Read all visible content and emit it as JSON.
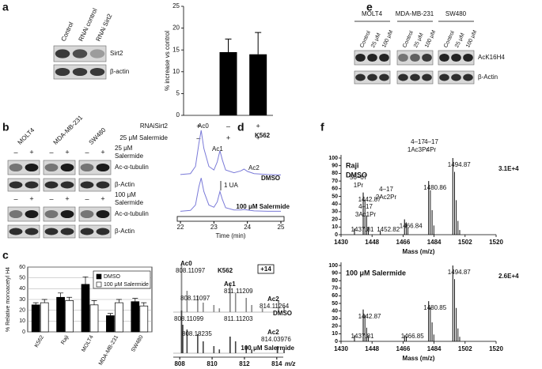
{
  "panels": {
    "a": {
      "letter": "a",
      "blot": {
        "lanes": [
          "Control",
          "RNAi control",
          "RNAi Sirt2"
        ],
        "bands": [
          "Sirt2",
          "β-actin"
        ]
      },
      "conditions": [
        {
          "label": "RNAiSirt2",
          "signs": [
            "+",
            "–",
            "+"
          ]
        },
        {
          "label": "25 μM Salermide",
          "signs": [
            "–",
            "+",
            "+"
          ]
        }
      ]
    },
    "b": {
      "letter": "b",
      "cell_lines": [
        "MOLT4",
        "MDA-MB-231",
        "SW480"
      ],
      "blocks": [
        {
          "signs": [
            "–",
            "+",
            "–",
            "+",
            "–",
            "+"
          ],
          "treatment": [
            "25 μM",
            "Salermide"
          ],
          "bands": [
            "Ac-α-tubulin",
            "β-Actin"
          ]
        },
        {
          "signs": [
            "–",
            "+",
            "–",
            "+",
            "–",
            "+"
          ],
          "treatment": [
            "100 μM",
            "Salermide"
          ],
          "bands": [
            "Ac-α-tubulin",
            "β-Actin"
          ]
        }
      ]
    },
    "c": {
      "letter": "c"
    },
    "d": {
      "letter": "d"
    },
    "e": {
      "letter": "e",
      "cell_lines": [
        "MOLT4",
        "MDA-MB-231",
        "SW480"
      ],
      "lanes": [
        "Control",
        "25 μM",
        "100 μM"
      ],
      "bands": [
        "AcK16H4",
        "β-Actin"
      ]
    },
    "f": {
      "letter": "f"
    }
  },
  "chart_data": [
    {
      "type": "bar",
      "y_label": "% increase vs control",
      "values": [
        0,
        14.5,
        14
      ],
      "errors": [
        null,
        3,
        5
      ],
      "color": "#000000",
      "ylim": [
        0,
        25
      ],
      "yticks": [
        0,
        5,
        10,
        15,
        20,
        25
      ]
    },
    {
      "type": "grouped_bar",
      "y_label": "% Relative monoacetyl H4",
      "categories": [
        "K562",
        "Raji",
        "MOLT4",
        "MDA-MB-231",
        "SW480"
      ],
      "series": [
        {
          "name": "DMSO",
          "color": "#000000",
          "values": [
            25,
            32,
            44,
            15,
            28
          ],
          "errors": [
            2,
            4,
            7,
            2,
            3
          ]
        },
        {
          "name": "100 μM Salermide",
          "color": "#ffffff",
          "values": [
            27,
            29,
            25,
            27,
            24
          ],
          "errors": [
            3,
            3,
            4,
            3,
            3
          ]
        }
      ],
      "ylim": [
        0,
        60
      ],
      "yticks": [
        0,
        10,
        20,
        30,
        40,
        50,
        60
      ],
      "legend": "upper right"
    },
    {
      "type": "line",
      "title": "K562",
      "x_label": "Time (min)",
      "annotations": [
        "Ac0",
        "Ac1",
        "Ac2",
        "1 UA"
      ],
      "x": [
        22,
        22.3,
        22.45,
        22.55,
        22.62,
        22.7,
        22.85,
        23.0,
        23.1,
        23.18,
        23.25,
        23.35,
        23.6,
        23.8,
        23.9,
        24.0,
        24.2,
        24.6,
        25
      ],
      "series": [
        {
          "name": "DMSO",
          "color": "#7a7ad8",
          "values": [
            2,
            4,
            20,
            70,
            100,
            60,
            20,
            12,
            30,
            55,
            35,
            12,
            6,
            10,
            14,
            9,
            4,
            2,
            1
          ]
        },
        {
          "name": "100 μM Salermide",
          "color": "#7a7ad8",
          "values": [
            1,
            3,
            15,
            55,
            75,
            45,
            15,
            10,
            22,
            45,
            28,
            9,
            4,
            4,
            5,
            4,
            2,
            1,
            1
          ]
        }
      ],
      "xlim": [
        22,
        25
      ],
      "xticks": [
        22,
        23,
        24,
        25
      ]
    },
    {
      "type": "stem",
      "title": "K562",
      "x_label": "m/z",
      "annotations": [
        "Ac0",
        "Ac1",
        "Ac2",
        "+14",
        "808.11097",
        "Ac2"
      ],
      "series": [
        {
          "name": "DMSO",
          "color": "#8a8a8a",
          "x": [
            808.11097,
            811.11209,
            814.11264
          ],
          "values": [
            100,
            60,
            25
          ],
          "isotope_x": [
            808.45,
            809.11,
            809.45,
            810.11,
            810.45,
            811.45,
            812.11,
            812.45,
            813.11,
            814.45
          ],
          "isotope_values": [
            45,
            35,
            20,
            15,
            8,
            40,
            30,
            15,
            8,
            12
          ]
        },
        {
          "name": "100 μM Salermide",
          "color": "#444444",
          "x": [
            808.11099,
            808.18235,
            811.11203,
            814.03976
          ],
          "values": [
            90,
            60,
            35,
            15
          ],
          "isotope_x": [
            808.45,
            809.11,
            809.45,
            810.11,
            810.45,
            811.45,
            812.11,
            812.45,
            814.45
          ],
          "isotope_values": [
            50,
            40,
            25,
            15,
            8,
            25,
            15,
            8,
            8
          ]
        }
      ],
      "xlim": [
        807.6,
        814.4
      ],
      "xticks": [
        808,
        810,
        812,
        814
      ]
    },
    {
      "type": "spectrum",
      "labels": [
        "Raji",
        "DMSO"
      ],
      "intensity": "3.1E+4",
      "x_label": "Mass (m/z)",
      "annotations": [
        [
          "56–67",
          "1Pr"
        ],
        [
          "4–17",
          "3Ac1Pr"
        ],
        [
          "4–17",
          "2Ac2Pr"
        ],
        [
          "4–17",
          "1Ac3Pr"
        ],
        [
          "4–17",
          "4Pr"
        ]
      ],
      "x": [
        1437.81,
        1442.87,
        1452.82,
        1466.84,
        1480.86,
        1494.87
      ],
      "values": [
        8,
        55,
        5,
        20,
        70,
        100
      ],
      "isotope_x": [
        1443.87,
        1444.87,
        1445.87,
        1467.84,
        1468.84,
        1481.86,
        1482.86,
        1483.86,
        1495.87,
        1496.87,
        1497.87,
        1498.87
      ],
      "isotope_values": [
        45,
        25,
        10,
        16,
        9,
        58,
        32,
        12,
        82,
        45,
        18,
        6
      ],
      "color": "#000000",
      "xlim": [
        1430,
        1520
      ],
      "xticks": [
        1430,
        1448,
        1466,
        1484,
        1502,
        1520
      ],
      "ylim": [
        0,
        100
      ],
      "yticks": [
        0,
        10,
        20,
        30,
        40,
        50,
        60,
        70,
        80,
        90,
        100
      ]
    },
    {
      "type": "spectrum",
      "labels": [
        "100 μM Salermide"
      ],
      "intensity": "2.6E+4",
      "x_label": "Mass (m/z)",
      "x": [
        1437.81,
        1442.87,
        1466.85,
        1480.85,
        1494.87
      ],
      "values": [
        8,
        42,
        8,
        53,
        100
      ],
      "isotope_x": [
        1443.87,
        1444.87,
        1445.87,
        1467.85,
        1481.85,
        1482.85,
        1483.85,
        1495.87,
        1496.87,
        1497.87,
        1498.87
      ],
      "isotope_values": [
        35,
        18,
        7,
        6,
        45,
        25,
        9,
        82,
        44,
        17,
        6
      ],
      "color": "#000000",
      "xlim": [
        1430,
        1520
      ],
      "xticks": [
        1430,
        1448,
        1466,
        1484,
        1502,
        1520
      ],
      "ylim": [
        0,
        100
      ],
      "yticks": [
        0,
        10,
        20,
        30,
        40,
        50,
        60,
        70,
        80,
        90,
        100
      ]
    }
  ]
}
